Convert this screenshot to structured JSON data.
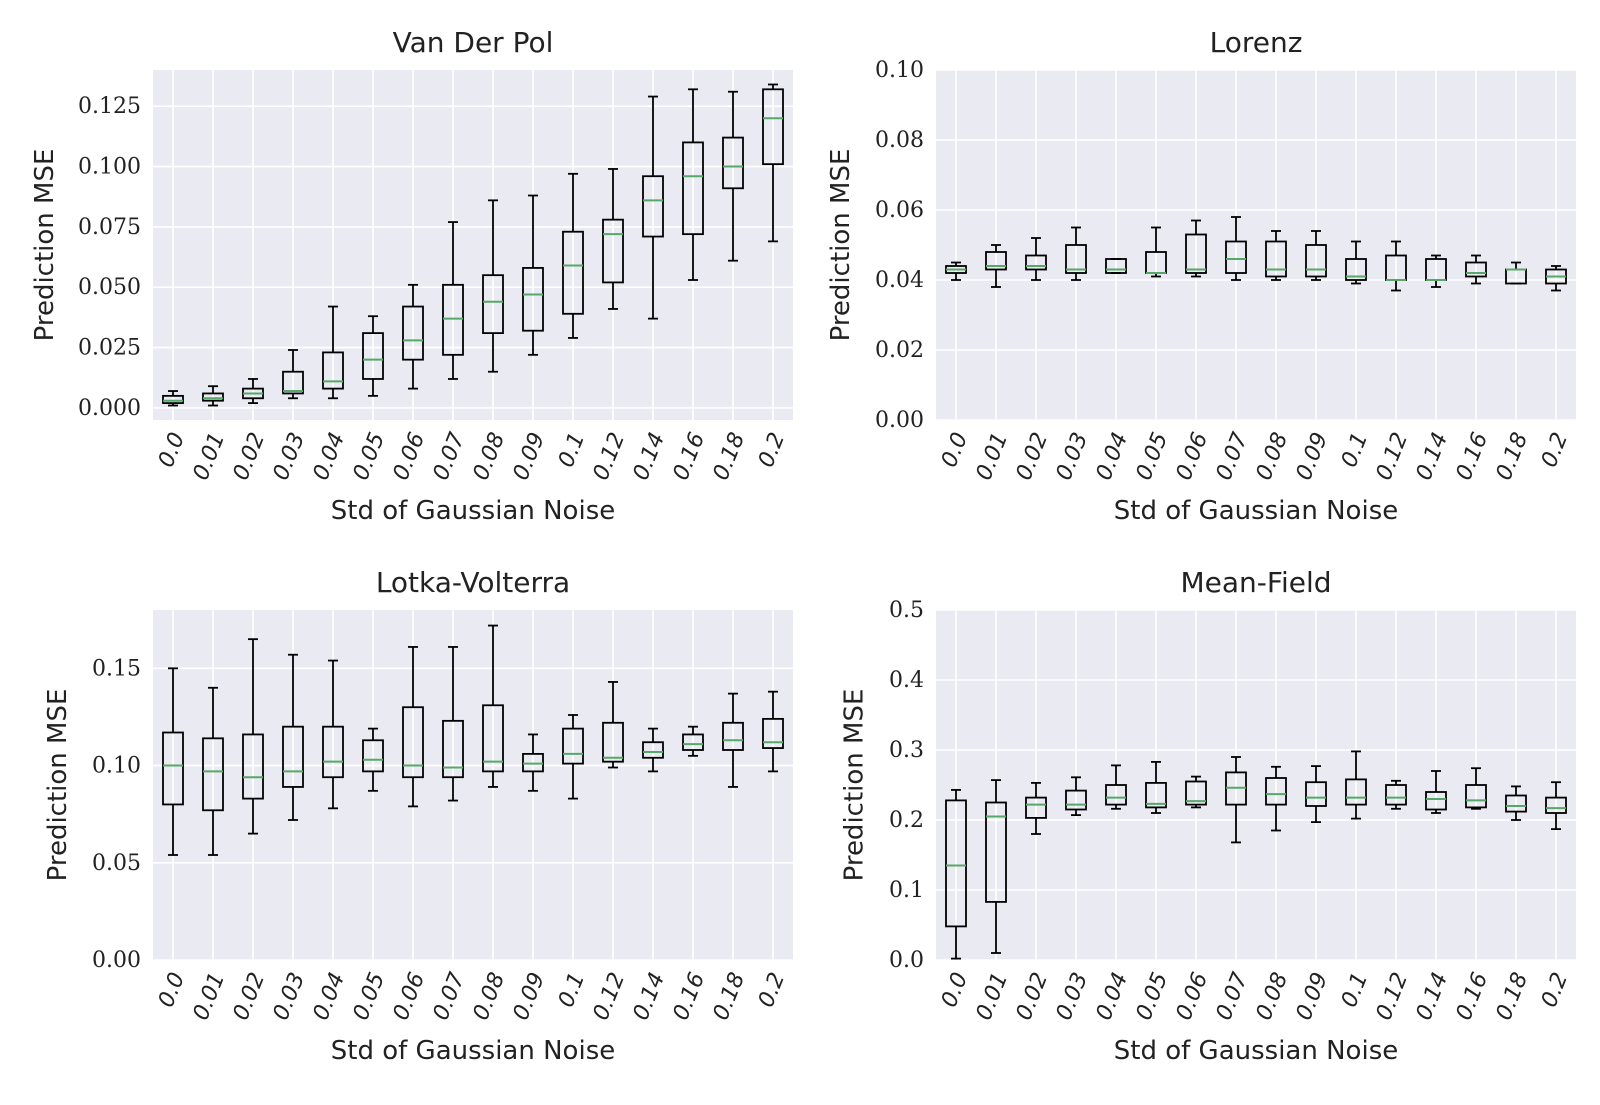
{
  "chart_data": [
    {
      "type": "box",
      "title": "Van Der Pol",
      "xlabel": "Std of Gaussian Noise",
      "ylabel": "Prediction MSE",
      "ylim": [
        -0.005,
        0.14
      ],
      "yticks": [
        0.0,
        0.025,
        0.05,
        0.075,
        0.1,
        0.125
      ],
      "ytick_labels": [
        "0.000",
        "0.025",
        "0.050",
        "0.075",
        "0.100",
        "0.125"
      ],
      "categories": [
        "0.0",
        "0.01",
        "0.02",
        "0.03",
        "0.04",
        "0.05",
        "0.06",
        "0.07",
        "0.08",
        "0.09",
        "0.1",
        "0.12",
        "0.14",
        "0.16",
        "0.18",
        "0.2"
      ],
      "boxes": [
        {
          "whislo": 0.001,
          "q1": 0.002,
          "med": 0.003,
          "q3": 0.005,
          "whishi": 0.007
        },
        {
          "whislo": 0.001,
          "q1": 0.003,
          "med": 0.004,
          "q3": 0.006,
          "whishi": 0.009
        },
        {
          "whislo": 0.002,
          "q1": 0.004,
          "med": 0.006,
          "q3": 0.008,
          "whishi": 0.012
        },
        {
          "whislo": 0.004,
          "q1": 0.006,
          "med": 0.007,
          "q3": 0.015,
          "whishi": 0.024
        },
        {
          "whislo": 0.004,
          "q1": 0.008,
          "med": 0.011,
          "q3": 0.023,
          "whishi": 0.042
        },
        {
          "whislo": 0.005,
          "q1": 0.012,
          "med": 0.02,
          "q3": 0.031,
          "whishi": 0.038
        },
        {
          "whislo": 0.008,
          "q1": 0.02,
          "med": 0.028,
          "q3": 0.042,
          "whishi": 0.051
        },
        {
          "whislo": 0.012,
          "q1": 0.022,
          "med": 0.037,
          "q3": 0.051,
          "whishi": 0.077
        },
        {
          "whislo": 0.015,
          "q1": 0.031,
          "med": 0.044,
          "q3": 0.055,
          "whishi": 0.086
        },
        {
          "whislo": 0.022,
          "q1": 0.032,
          "med": 0.047,
          "q3": 0.058,
          "whishi": 0.088
        },
        {
          "whislo": 0.029,
          "q1": 0.039,
          "med": 0.059,
          "q3": 0.073,
          "whishi": 0.097
        },
        {
          "whislo": 0.041,
          "q1": 0.052,
          "med": 0.072,
          "q3": 0.078,
          "whishi": 0.099
        },
        {
          "whislo": 0.037,
          "q1": 0.071,
          "med": 0.086,
          "q3": 0.096,
          "whishi": 0.129
        },
        {
          "whislo": 0.053,
          "q1": 0.072,
          "med": 0.096,
          "q3": 0.11,
          "whishi": 0.132
        },
        {
          "whislo": 0.061,
          "q1": 0.091,
          "med": 0.1,
          "q3": 0.112,
          "whishi": 0.131
        },
        {
          "whislo": 0.069,
          "q1": 0.101,
          "med": 0.12,
          "q3": 0.132,
          "whishi": 0.134
        }
      ]
    },
    {
      "type": "box",
      "title": "Lorenz",
      "xlabel": "Std of Gaussian Noise",
      "ylabel": "Prediction MSE",
      "ylim": [
        0.0,
        0.1
      ],
      "yticks": [
        0.0,
        0.02,
        0.04,
        0.06,
        0.08,
        0.1
      ],
      "ytick_labels": [
        "0.00",
        "0.02",
        "0.04",
        "0.06",
        "0.08",
        "0.10"
      ],
      "categories": [
        "0.0",
        "0.01",
        "0.02",
        "0.03",
        "0.04",
        "0.05",
        "0.06",
        "0.07",
        "0.08",
        "0.09",
        "0.1",
        "0.12",
        "0.14",
        "0.16",
        "0.18",
        "0.2"
      ],
      "boxes": [
        {
          "whislo": 0.04,
          "q1": 0.042,
          "med": 0.043,
          "q3": 0.044,
          "whishi": 0.045
        },
        {
          "whislo": 0.038,
          "q1": 0.043,
          "med": 0.044,
          "q3": 0.048,
          "whishi": 0.05
        },
        {
          "whislo": 0.04,
          "q1": 0.043,
          "med": 0.044,
          "q3": 0.047,
          "whishi": 0.052
        },
        {
          "whislo": 0.04,
          "q1": 0.042,
          "med": 0.043,
          "q3": 0.05,
          "whishi": 0.055
        },
        {
          "whislo": 0.042,
          "q1": 0.042,
          "med": 0.043,
          "q3": 0.046,
          "whishi": 0.046
        },
        {
          "whislo": 0.041,
          "q1": 0.042,
          "med": 0.042,
          "q3": 0.048,
          "whishi": 0.055
        },
        {
          "whislo": 0.041,
          "q1": 0.042,
          "med": 0.043,
          "q3": 0.053,
          "whishi": 0.057
        },
        {
          "whislo": 0.04,
          "q1": 0.042,
          "med": 0.046,
          "q3": 0.051,
          "whishi": 0.058
        },
        {
          "whislo": 0.04,
          "q1": 0.041,
          "med": 0.043,
          "q3": 0.051,
          "whishi": 0.054
        },
        {
          "whislo": 0.04,
          "q1": 0.041,
          "med": 0.043,
          "q3": 0.05,
          "whishi": 0.054
        },
        {
          "whislo": 0.039,
          "q1": 0.04,
          "med": 0.041,
          "q3": 0.046,
          "whishi": 0.051
        },
        {
          "whislo": 0.037,
          "q1": 0.04,
          "med": 0.04,
          "q3": 0.047,
          "whishi": 0.051
        },
        {
          "whislo": 0.038,
          "q1": 0.04,
          "med": 0.04,
          "q3": 0.046,
          "whishi": 0.047
        },
        {
          "whislo": 0.039,
          "q1": 0.041,
          "med": 0.042,
          "q3": 0.045,
          "whishi": 0.047
        },
        {
          "whislo": 0.039,
          "q1": 0.039,
          "med": 0.043,
          "q3": 0.043,
          "whishi": 0.045
        },
        {
          "whislo": 0.037,
          "q1": 0.039,
          "med": 0.041,
          "q3": 0.043,
          "whishi": 0.044
        }
      ]
    },
    {
      "type": "box",
      "title": "Lotka-Volterra",
      "xlabel": "Std of Gaussian Noise",
      "ylabel": "Prediction MSE",
      "ylim": [
        0.0,
        0.18
      ],
      "yticks": [
        0.0,
        0.05,
        0.1,
        0.15
      ],
      "ytick_labels": [
        "0.00",
        "0.05",
        "0.10",
        "0.15"
      ],
      "categories": [
        "0.0",
        "0.01",
        "0.02",
        "0.03",
        "0.04",
        "0.05",
        "0.06",
        "0.07",
        "0.08",
        "0.09",
        "0.1",
        "0.12",
        "0.14",
        "0.16",
        "0.18",
        "0.2"
      ],
      "boxes": [
        {
          "whislo": 0.054,
          "q1": 0.08,
          "med": 0.1,
          "q3": 0.117,
          "whishi": 0.15
        },
        {
          "whislo": 0.054,
          "q1": 0.077,
          "med": 0.097,
          "q3": 0.114,
          "whishi": 0.14
        },
        {
          "whislo": 0.065,
          "q1": 0.083,
          "med": 0.094,
          "q3": 0.116,
          "whishi": 0.165
        },
        {
          "whislo": 0.072,
          "q1": 0.089,
          "med": 0.097,
          "q3": 0.12,
          "whishi": 0.157
        },
        {
          "whislo": 0.078,
          "q1": 0.094,
          "med": 0.102,
          "q3": 0.12,
          "whishi": 0.154
        },
        {
          "whislo": 0.087,
          "q1": 0.097,
          "med": 0.103,
          "q3": 0.113,
          "whishi": 0.119
        },
        {
          "whislo": 0.079,
          "q1": 0.094,
          "med": 0.1,
          "q3": 0.13,
          "whishi": 0.161
        },
        {
          "whislo": 0.082,
          "q1": 0.094,
          "med": 0.099,
          "q3": 0.123,
          "whishi": 0.161
        },
        {
          "whislo": 0.089,
          "q1": 0.097,
          "med": 0.102,
          "q3": 0.131,
          "whishi": 0.172
        },
        {
          "whislo": 0.087,
          "q1": 0.097,
          "med": 0.101,
          "q3": 0.106,
          "whishi": 0.116
        },
        {
          "whislo": 0.083,
          "q1": 0.101,
          "med": 0.106,
          "q3": 0.119,
          "whishi": 0.126
        },
        {
          "whislo": 0.099,
          "q1": 0.102,
          "med": 0.104,
          "q3": 0.122,
          "whishi": 0.143
        },
        {
          "whislo": 0.097,
          "q1": 0.104,
          "med": 0.107,
          "q3": 0.112,
          "whishi": 0.119
        },
        {
          "whislo": 0.105,
          "q1": 0.108,
          "med": 0.111,
          "q3": 0.116,
          "whishi": 0.12
        },
        {
          "whislo": 0.089,
          "q1": 0.108,
          "med": 0.113,
          "q3": 0.122,
          "whishi": 0.137
        },
        {
          "whislo": 0.097,
          "q1": 0.109,
          "med": 0.112,
          "q3": 0.124,
          "whishi": 0.138
        }
      ]
    },
    {
      "type": "box",
      "title": "Mean-Field",
      "xlabel": "Std of Gaussian Noise",
      "ylabel": "Prediction MSE",
      "ylim": [
        0.0,
        0.5
      ],
      "yticks": [
        0.0,
        0.1,
        0.2,
        0.3,
        0.4,
        0.5
      ],
      "ytick_labels": [
        "0.0",
        "0.1",
        "0.2",
        "0.3",
        "0.4",
        "0.5"
      ],
      "categories": [
        "0.0",
        "0.01",
        "0.02",
        "0.03",
        "0.04",
        "0.05",
        "0.06",
        "0.07",
        "0.08",
        "0.09",
        "0.1",
        "0.12",
        "0.14",
        "0.16",
        "0.18",
        "0.2"
      ],
      "boxes": [
        {
          "whislo": 0.002,
          "q1": 0.048,
          "med": 0.135,
          "q3": 0.228,
          "whishi": 0.243
        },
        {
          "whislo": 0.01,
          "q1": 0.083,
          "med": 0.205,
          "q3": 0.225,
          "whishi": 0.257
        },
        {
          "whislo": 0.18,
          "q1": 0.203,
          "med": 0.222,
          "q3": 0.232,
          "whishi": 0.253
        },
        {
          "whislo": 0.207,
          "q1": 0.215,
          "med": 0.222,
          "q3": 0.242,
          "whishi": 0.261
        },
        {
          "whislo": 0.216,
          "q1": 0.222,
          "med": 0.232,
          "q3": 0.25,
          "whishi": 0.278
        },
        {
          "whislo": 0.21,
          "q1": 0.218,
          "med": 0.223,
          "q3": 0.253,
          "whishi": 0.283
        },
        {
          "whislo": 0.218,
          "q1": 0.222,
          "med": 0.227,
          "q3": 0.255,
          "whishi": 0.262
        },
        {
          "whislo": 0.168,
          "q1": 0.222,
          "med": 0.246,
          "q3": 0.268,
          "whishi": 0.29
        },
        {
          "whislo": 0.185,
          "q1": 0.222,
          "med": 0.237,
          "q3": 0.26,
          "whishi": 0.276
        },
        {
          "whislo": 0.197,
          "q1": 0.22,
          "med": 0.232,
          "q3": 0.254,
          "whishi": 0.277
        },
        {
          "whislo": 0.202,
          "q1": 0.222,
          "med": 0.232,
          "q3": 0.258,
          "whishi": 0.298
        },
        {
          "whislo": 0.216,
          "q1": 0.222,
          "med": 0.232,
          "q3": 0.25,
          "whishi": 0.256
        },
        {
          "whislo": 0.21,
          "q1": 0.215,
          "med": 0.23,
          "q3": 0.24,
          "whishi": 0.27
        },
        {
          "whislo": 0.216,
          "q1": 0.218,
          "med": 0.228,
          "q3": 0.25,
          "whishi": 0.274
        },
        {
          "whislo": 0.2,
          "q1": 0.212,
          "med": 0.22,
          "q3": 0.235,
          "whishi": 0.248
        },
        {
          "whislo": 0.187,
          "q1": 0.21,
          "med": 0.217,
          "q3": 0.232,
          "whishi": 0.254
        }
      ]
    }
  ]
}
